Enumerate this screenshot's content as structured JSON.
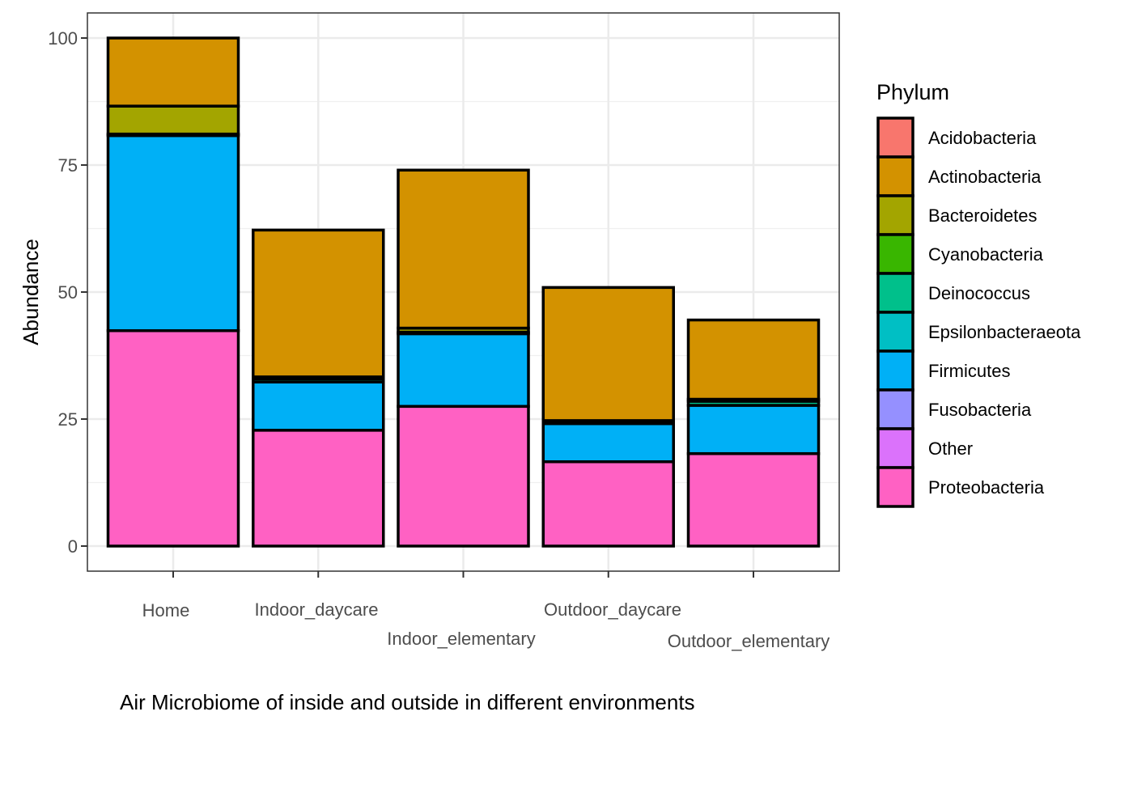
{
  "chart_data": {
    "type": "bar",
    "stacked": true,
    "categories": [
      "Home",
      "Indoor_daycare",
      "Indoor_elementary",
      "Outdoor_daycare",
      "Outdoor_elementary"
    ],
    "ylabel": "Abundance",
    "xlabel": "Air Microbiome of inside and outside in different environments",
    "ylim": [
      -5,
      105
    ],
    "yticks": [
      0,
      25,
      50,
      75,
      100
    ],
    "grid": true,
    "legend": {
      "title": "Phylum",
      "position": "right"
    },
    "series": [
      {
        "name": "Proteobacteria",
        "color": "#FF61C3",
        "values": [
          42.4,
          22.8,
          27.5,
          16.6,
          18.2
        ]
      },
      {
        "name": "Other",
        "color": "#DB72FB",
        "values": [
          0,
          0,
          0,
          0,
          0
        ]
      },
      {
        "name": "Fusobacteria",
        "color": "#93AA00",
        "legend_color": "#9590FF",
        "values": [
          0,
          0,
          0,
          0,
          0
        ]
      },
      {
        "name": "Firmicutes",
        "color": "#00B0F6",
        "values": [
          38.4,
          9.5,
          14.3,
          7.5,
          9.5
        ]
      },
      {
        "name": "Epsilonbacteraeota",
        "color": "#00BFC4",
        "values": [
          0,
          0,
          0,
          0,
          0
        ]
      },
      {
        "name": "Deinococcus",
        "color": "#00C08B",
        "values": [
          0.3,
          0.6,
          0.3,
          0.3,
          0.8
        ]
      },
      {
        "name": "Cyanobacteria",
        "color": "#39B600",
        "values": [
          0,
          0,
          0,
          0,
          0
        ]
      },
      {
        "name": "Bacteroidetes",
        "color": "#A3A500",
        "values": [
          5.5,
          0.4,
          0.8,
          0.3,
          0.4
        ]
      },
      {
        "name": "Actinobacteria",
        "color": "#D39200",
        "values": [
          13.4,
          28.9,
          31.1,
          26.2,
          15.6
        ]
      },
      {
        "name": "Acidobacteria",
        "color": "#F8766D",
        "values": [
          0,
          0,
          0,
          0,
          0
        ]
      }
    ],
    "legend_order": [
      "Acidobacteria",
      "Actinobacteria",
      "Bacteroidetes",
      "Cyanobacteria",
      "Deinococcus",
      "Epsilonbacteraeota",
      "Firmicutes",
      "Fusobacteria",
      "Other",
      "Proteobacteria"
    ]
  }
}
